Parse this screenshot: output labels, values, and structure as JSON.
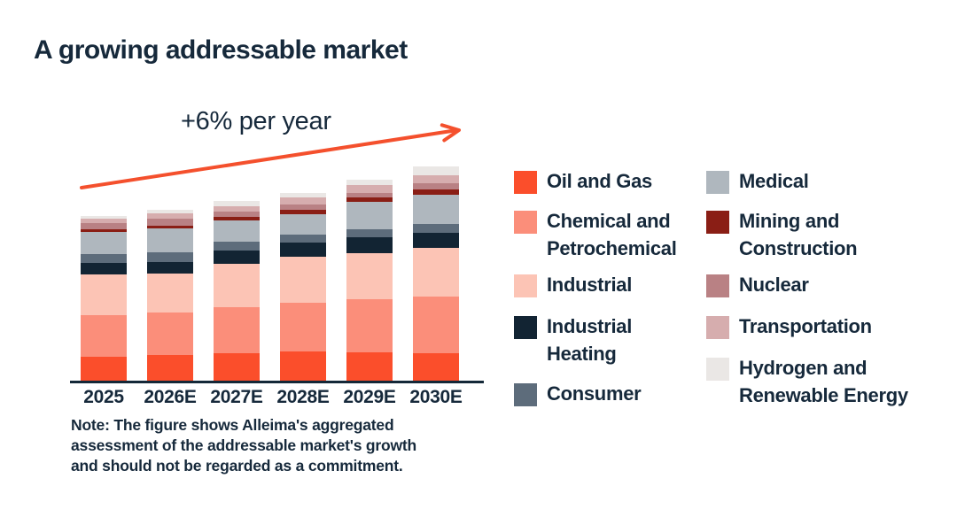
{
  "title": "A growing addressable market",
  "note": "Note: The figure shows Alleima's aggregated\nassessment of the addressable market's growth\nand should not be regarded as a commitment.",
  "colors": {
    "text_navy": "#16293B",
    "arrow_red": "#F4502D",
    "axis": "#142838",
    "background": "#FFFFFF"
  },
  "chart_data": {
    "type": "bar",
    "subtype": "stacked-vertical",
    "title": "A growing addressable market",
    "annotation": "+6% per year",
    "categories": [
      "2025",
      "2026E",
      "2027E",
      "2028E",
      "2029E",
      "2030E"
    ],
    "unit": "relative market size (pixel-proportional, unlabeled axis)",
    "totals": [
      187,
      194,
      205,
      214,
      228.5,
      243
    ],
    "series": [
      {
        "name": "Oil and Gas",
        "color": "#FB4E2B",
        "values": [
          28.5,
          30,
          32,
          34,
          33,
          32.5
        ]
      },
      {
        "name": "Chemical and Petrochemical",
        "color": "#FB8E7A",
        "values": [
          46.5,
          48,
          52,
          55,
          60.5,
          63.5
        ]
      },
      {
        "name": "Industrial",
        "color": "#FCC4B5",
        "values": [
          46,
          44,
          49,
          52.5,
          52,
          55
        ]
      },
      {
        "name": "Industrial Heating",
        "color": "#122433",
        "values": [
          13,
          13,
          15,
          16,
          18,
          17.5
        ]
      },
      {
        "name": "Consumer",
        "color": "#5D6C7B",
        "values": [
          10,
          11,
          10,
          8.5,
          9,
          10
        ]
      },
      {
        "name": "Medical",
        "color": "#AFB7BE",
        "values": [
          25,
          27,
          24,
          23.5,
          30.5,
          32.5
        ]
      },
      {
        "name": "Mining and Construction",
        "color": "#8A1E15",
        "values": [
          3.5,
          3,
          4.5,
          4.5,
          5,
          6.5
        ]
      },
      {
        "name": "Nuclear",
        "color": "#B98184",
        "values": [
          7,
          8,
          5.5,
          6.5,
          5.5,
          6.5
        ]
      },
      {
        "name": "Transportation",
        "color": "#D6ADAE",
        "values": [
          5,
          6,
          6.5,
          7.5,
          8.5,
          9
        ]
      },
      {
        "name": "Hydrogen and Renewable Energy",
        "color": "#EAE7E5",
        "values": [
          2.5,
          4,
          6,
          5.5,
          6.5,
          10
        ]
      }
    ],
    "legend_position": "right",
    "grid": false,
    "y_axis_labels": false
  },
  "legend": {
    "labels": [
      "Oil and Gas",
      "Chemical and\n Petrochemical",
      "Industrial",
      "Industrial\nHeating",
      "Consumer",
      "Medical",
      "Mining and\nConstruction",
      "Nuclear",
      "Transportation",
      "Hydrogen and\nRenewable Energy"
    ]
  }
}
